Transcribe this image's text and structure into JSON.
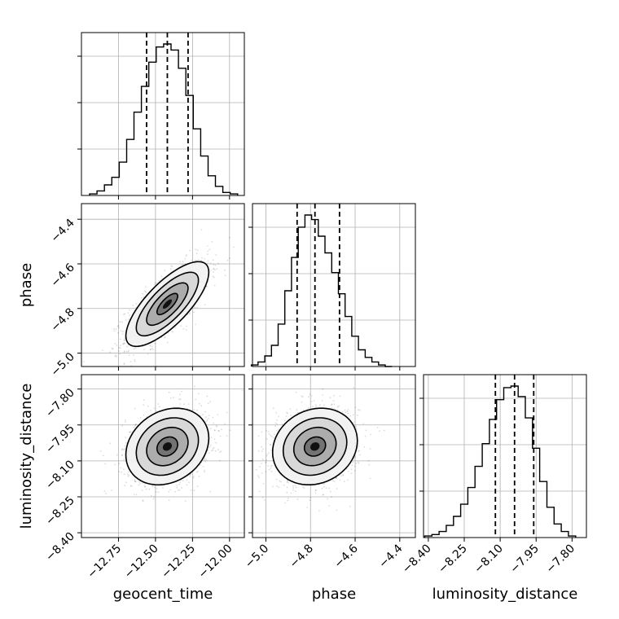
{
  "chart_data": {
    "type": "corner",
    "grid": true,
    "parameters": [
      {
        "name": "geocent_time",
        "range": [
          -13.0,
          -11.9
        ],
        "ticks": [
          -12.75,
          -12.5,
          -12.25,
          -12.0
        ],
        "tick_labels": [
          "−12.75",
          "−12.50",
          "−12.25",
          "−12.00"
        ],
        "quantiles": [
          -12.56,
          -12.42,
          -12.28
        ],
        "hist_bins": [
          -12.92,
          -12.87,
          -12.82,
          -12.77,
          -12.72,
          -12.67,
          -12.62,
          -12.57,
          -12.52,
          -12.47,
          -12.42,
          -12.37,
          -12.32,
          -12.27,
          -12.22,
          -12.17,
          -12.12,
          -12.07,
          -12.02,
          -11.97
        ],
        "hist_counts": [
          0.01,
          0.03,
          0.07,
          0.12,
          0.22,
          0.37,
          0.55,
          0.72,
          0.88,
          0.98,
          1.0,
          0.96,
          0.84,
          0.66,
          0.44,
          0.26,
          0.13,
          0.06,
          0.02,
          0.01
        ]
      },
      {
        "name": "phase",
        "range": [
          -5.06,
          -4.33
        ],
        "ticks": [
          -5.0,
          -4.8,
          -4.6,
          -4.4
        ],
        "tick_labels": [
          "−5.0",
          "−4.8",
          "−4.6",
          "−4.4"
        ],
        "quantiles": [
          -4.86,
          -4.78,
          -4.67
        ],
        "hist_bins": [
          -5.05,
          -5.02,
          -4.99,
          -4.96,
          -4.93,
          -4.9,
          -4.87,
          -4.84,
          -4.81,
          -4.78,
          -4.75,
          -4.72,
          -4.69,
          -4.66,
          -4.63,
          -4.6,
          -4.57,
          -4.54,
          -4.51,
          -4.48,
          -4.45
        ],
        "hist_counts": [
          0.01,
          0.03,
          0.07,
          0.14,
          0.28,
          0.5,
          0.72,
          0.92,
          1.0,
          0.97,
          0.86,
          0.75,
          0.62,
          0.48,
          0.33,
          0.2,
          0.11,
          0.06,
          0.03,
          0.01,
          0.0
        ]
      },
      {
        "name": "luminosity_distance",
        "range": [
          -8.42,
          -7.74
        ],
        "ticks": [
          -8.4,
          -8.25,
          -8.1,
          -7.95,
          -7.8
        ],
        "tick_labels": [
          "−8.40",
          "−8.25",
          "−8.10",
          "−7.95",
          "−7.80"
        ],
        "quantiles": [
          -8.12,
          -8.04,
          -7.96
        ],
        "hist_bins": [
          -8.4,
          -8.37,
          -8.34,
          -8.31,
          -8.28,
          -8.25,
          -8.22,
          -8.19,
          -8.16,
          -8.13,
          -8.1,
          -8.07,
          -8.04,
          -8.01,
          -7.98,
          -7.95,
          -7.92,
          -7.89,
          -7.86,
          -7.83,
          -7.8
        ],
        "hist_counts": [
          0.01,
          0.02,
          0.04,
          0.08,
          0.14,
          0.22,
          0.33,
          0.47,
          0.62,
          0.78,
          0.91,
          0.99,
          1.0,
          0.93,
          0.79,
          0.59,
          0.37,
          0.2,
          0.09,
          0.04,
          0.01
        ]
      }
    ],
    "correlations": [
      {
        "x": "geocent_time",
        "y": "phase",
        "center": [
          -12.42,
          -4.78
        ],
        "sd": [
          0.14,
          0.095
        ],
        "rho": 0.75
      },
      {
        "x": "geocent_time",
        "y": "luminosity_distance",
        "center": [
          -12.42,
          -8.04
        ],
        "sd": [
          0.14,
          0.08
        ],
        "rho": 0.22
      },
      {
        "x": "phase",
        "y": "luminosity_distance",
        "center": [
          -4.78,
          -8.04
        ],
        "sd": [
          0.095,
          0.08
        ],
        "rho": 0.15
      }
    ],
    "contour_levels": [
      0.5,
      1.0,
      1.5,
      2.0
    ],
    "sample_count": 1400
  }
}
